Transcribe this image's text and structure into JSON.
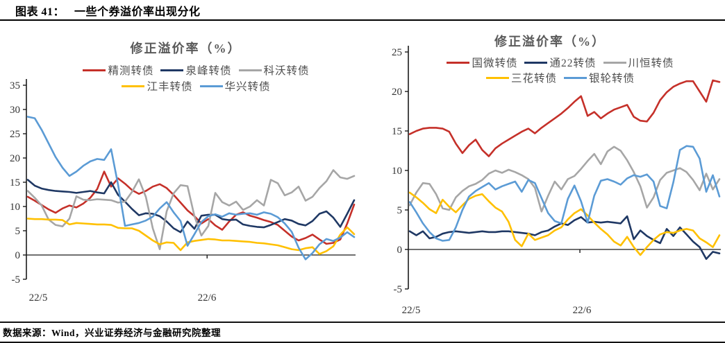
{
  "page": {
    "title_prefix": "图表 41：",
    "title_text": "一些个券溢价率出现分化",
    "footer": "数据来源：Wind，兴业证券经济与金融研究院整理"
  },
  "colors": {
    "axis": "#1a1a1a",
    "title_gray": "#5a5a5a"
  },
  "chart_data": [
    {
      "type": "line",
      "title": "修正溢价率（%）",
      "ylabel": "修正溢价率（%）",
      "ylim": [
        -5,
        35
      ],
      "ytick_step": 5,
      "x_ticks": [
        "22/5",
        "22/6"
      ],
      "grid": false,
      "legend_position": "top",
      "series": [
        {
          "name": "精测转债",
          "color": "#C53029",
          "values": [
            12.0,
            11.2,
            10.3,
            9.4,
            8.7,
            9.6,
            10.2,
            9.8,
            10.6,
            11.8,
            13.6,
            17.2,
            14.1,
            15.8,
            14.7,
            13.4,
            12.6,
            13.2,
            14.1,
            14.6,
            13.8,
            12.4,
            10.8,
            9.2,
            8.0,
            6.5,
            7.4,
            6.1,
            5.2,
            6.9,
            8.3,
            8.8,
            8.1,
            7.7,
            7.2,
            6.8,
            6.2,
            5.0,
            3.8,
            3.0,
            3.5,
            4.2,
            3.2,
            2.3,
            2.5,
            3.2,
            6.5,
            10.4
          ]
        },
        {
          "name": "泉峰转债",
          "color": "#1F3864",
          "values": [
            15.5,
            14.3,
            13.7,
            13.4,
            13.2,
            13.1,
            13.0,
            12.8,
            13.0,
            13.2,
            12.9,
            12.7,
            15.0,
            12.4,
            11.0,
            9.5,
            8.2,
            8.6,
            8.5,
            8.0,
            6.9,
            5.5,
            4.7,
            6.9,
            5.4,
            8.1,
            8.3,
            8.3,
            7.4,
            7.2,
            7.3,
            6.3,
            6.0,
            5.8,
            5.7,
            6.2,
            6.8,
            7.4,
            7.1,
            6.4,
            6.1,
            7.0,
            8.5,
            9.0,
            7.7,
            5.8,
            8.5,
            11.3
          ]
        },
        {
          "name": "科沃转债",
          "color": "#A6A6A6",
          "values": [
            13.2,
            11.8,
            10.2,
            7.3,
            6.2,
            5.9,
            7.5,
            12.1,
            11.4,
            11.3,
            11.5,
            11.4,
            11.3,
            10.8,
            11.0,
            13.0,
            15.6,
            12.0,
            5.5,
            1.2,
            9.0,
            12.7,
            14.4,
            14.2,
            8.0,
            4.0,
            6.0,
            12.8,
            10.9,
            10.2,
            11.0,
            9.3,
            10.0,
            11.3,
            10.2,
            15.5,
            14.8,
            12.3,
            12.9,
            14.1,
            11.2,
            12.0,
            13.8,
            15.2,
            17.5,
            16.0,
            15.7,
            16.3
          ]
        },
        {
          "name": "江丰转债",
          "color": "#FFC000",
          "values": [
            7.5,
            7.4,
            7.4,
            7.3,
            7.3,
            7.2,
            6.3,
            6.6,
            6.5,
            6.4,
            6.3,
            6.3,
            6.2,
            5.6,
            5.5,
            5.5,
            5.0,
            4.0,
            3.0,
            2.2,
            2.6,
            2.5,
            1.0,
            2.6,
            2.9,
            3.1,
            3.3,
            3.2,
            3.0,
            3.0,
            2.9,
            2.8,
            2.7,
            2.5,
            2.4,
            2.2,
            2.0,
            1.6,
            1.2,
            1.0,
            1.4,
            1.6,
            0.2,
            0.8,
            1.8,
            4.2,
            5.7,
            4.3
          ]
        },
        {
          "name": "华兴转债",
          "color": "#5B9BD5",
          "values": [
            28.5,
            28.2,
            25.8,
            23.0,
            20.2,
            18.0,
            16.3,
            17.2,
            18.4,
            19.3,
            19.8,
            19.6,
            21.8,
            14.5,
            6.0,
            6.3,
            6.6,
            7.1,
            7.9,
            9.6,
            10.9,
            8.8,
            7.0,
            1.9,
            4.3,
            6.8,
            8.0,
            8.4,
            7.9,
            8.6,
            8.3,
            8.5,
            8.6,
            8.3,
            8.8,
            8.5,
            7.8,
            6.5,
            4.8,
            1.5,
            -0.9,
            0.4,
            2.2,
            3.3,
            2.9,
            3.6,
            4.7,
            3.7
          ]
        }
      ]
    },
    {
      "type": "line",
      "title": "修正溢价率（%）",
      "ylabel": "修正溢价率（%）",
      "ylim": [
        -5,
        25
      ],
      "ytick_step": 5,
      "x_ticks": [
        "22/5",
        "22/6"
      ],
      "grid": false,
      "legend_position": "top",
      "series": [
        {
          "name": "国微转债",
          "color": "#C53029",
          "values": [
            14.6,
            15.0,
            15.3,
            15.4,
            15.4,
            15.3,
            14.9,
            13.4,
            12.2,
            13.2,
            13.9,
            12.6,
            11.8,
            12.8,
            13.4,
            13.9,
            14.4,
            14.9,
            15.3,
            14.7,
            15.4,
            16.0,
            16.6,
            17.2,
            17.9,
            18.7,
            19.4,
            16.9,
            17.4,
            16.6,
            17.2,
            17.7,
            18.0,
            18.3,
            16.8,
            16.3,
            16.2,
            17.3,
            18.9,
            19.9,
            20.6,
            21.0,
            21.3,
            21.3,
            20.0,
            18.7,
            21.4,
            21.2
          ]
        },
        {
          "name": "通22转债",
          "color": "#1F3864",
          "values": [
            2.3,
            1.8,
            2.3,
            1.4,
            1.6,
            2.0,
            2.2,
            2.3,
            2.2,
            2.1,
            2.2,
            2.3,
            2.2,
            2.2,
            2.3,
            2.3,
            2.2,
            2.1,
            2.0,
            1.8,
            2.2,
            2.4,
            2.9,
            3.3,
            3.1,
            3.7,
            4.1,
            3.4,
            3.5,
            3.4,
            3.5,
            3.4,
            3.3,
            4.2,
            1.3,
            2.4,
            1.7,
            1.2,
            0.8,
            2.6,
            1.7,
            2.8,
            1.9,
            1.0,
            0.3,
            -1.2,
            -0.3,
            -0.5
          ]
        },
        {
          "name": "川恒转债",
          "color": "#A6A6A6",
          "values": [
            5.6,
            7.2,
            8.4,
            8.3,
            7.0,
            5.2,
            5.0,
            6.6,
            7.4,
            8.0,
            8.3,
            8.8,
            9.6,
            10.0,
            9.7,
            10.1,
            9.8,
            9.4,
            8.9,
            7.8,
            4.8,
            6.8,
            8.6,
            7.6,
            8.9,
            9.3,
            10.2,
            11.2,
            12.1,
            10.8,
            12.4,
            13.0,
            12.5,
            11.3,
            9.8,
            8.0,
            5.3,
            6.6,
            8.8,
            9.7,
            10.0,
            10.3,
            9.8,
            8.8,
            7.5,
            9.6,
            7.6,
            8.9
          ]
        },
        {
          "name": "三花转债",
          "color": "#FFC000",
          "values": [
            7.2,
            6.6,
            5.9,
            5.1,
            4.6,
            6.3,
            5.4,
            4.7,
            5.6,
            6.4,
            6.8,
            7.0,
            6.1,
            5.3,
            4.8,
            3.5,
            1.2,
            0.4,
            2.0,
            1.2,
            1.5,
            1.8,
            2.4,
            2.8,
            3.8,
            4.6,
            5.1,
            4.3,
            3.4,
            2.6,
            1.9,
            1.0,
            0.5,
            1.6,
            0.3,
            -0.7,
            0.3,
            1.2,
            1.9,
            2.2,
            2.1,
            2.4,
            2.6,
            2.4,
            1.4,
            0.9,
            0.3,
            1.8
          ]
        },
        {
          "name": "银轮转债",
          "color": "#5B9BD5",
          "values": [
            6.0,
            4.7,
            3.3,
            2.2,
            1.4,
            1.1,
            1.2,
            2.8,
            5.0,
            6.7,
            7.4,
            7.9,
            8.4,
            7.6,
            8.0,
            8.3,
            8.6,
            7.3,
            8.8,
            8.4,
            6.5,
            4.6,
            3.6,
            3.3,
            6.4,
            8.1,
            6.1,
            3.4,
            6.8,
            8.7,
            8.9,
            8.6,
            8.2,
            9.0,
            9.4,
            9.2,
            9.5,
            8.6,
            5.5,
            5.2,
            8.5,
            12.6,
            13.1,
            13.0,
            11.5,
            7.3,
            9.4,
            6.7
          ]
        }
      ]
    }
  ]
}
